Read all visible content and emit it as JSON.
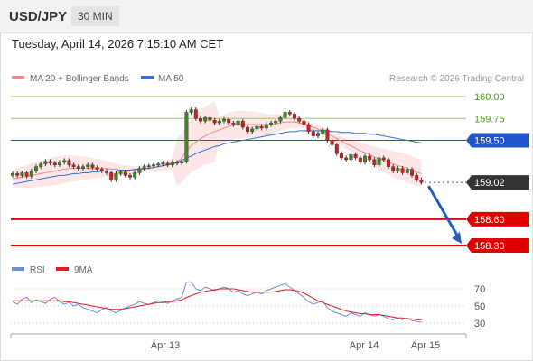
{
  "header": {
    "symbol": "USD/JPY",
    "timeframe": "30 MIN",
    "datetime": "Tuesday, April 14, 2026 7:15:10 AM CET"
  },
  "legend": {
    "ma20_label": "MA 20 + Bollinger Bands",
    "ma50_label": "MA 50",
    "credit": "Research © 2026 Trading Central",
    "rsi_label": "RSI",
    "rsi_ma_label": "9MA"
  },
  "colors": {
    "up": "#3a8a22",
    "down": "#d62020",
    "bollinger_fill": "#fde3e3",
    "ma20": "#f08a8a",
    "ma50": "#3a6fd8",
    "resistance": "#2255cc",
    "support": "#e00000",
    "target_line": "#99cc66",
    "target_text": "#4a9a1a",
    "last_price": "#333333",
    "forecast_arrow": "#1f5fbf",
    "rsi": "#6a8fd8",
    "rsi_ma": "#e02020"
  },
  "chart_data": [
    {
      "type": "candlestick",
      "title": "USD/JPY 30 MIN",
      "x_labels": [
        "Apr 13",
        "Apr 14",
        "Apr 15"
      ],
      "ylim": [
        158.2,
        160.1
      ],
      "price_axis_ticks": [
        160.0,
        159.75
      ],
      "levels": [
        {
          "value": 160.0,
          "label": "160.00",
          "kind": "target"
        },
        {
          "value": 159.75,
          "label": "159.75",
          "kind": "target"
        },
        {
          "value": 159.5,
          "label": "159.50",
          "kind": "resistance"
        },
        {
          "value": 159.02,
          "label": "159.02",
          "kind": "last-price"
        },
        {
          "value": 158.6,
          "label": "158.60",
          "kind": "support"
        },
        {
          "value": 158.3,
          "label": "158.30",
          "kind": "support"
        }
      ],
      "forecast": {
        "from": 159.02,
        "to": 158.3,
        "direction": "down"
      },
      "candles_close": [
        159.12,
        159.1,
        159.13,
        159.09,
        159.15,
        159.2,
        159.23,
        159.26,
        159.24,
        159.22,
        159.25,
        159.27,
        159.22,
        159.2,
        159.18,
        159.2,
        159.22,
        159.19,
        159.17,
        159.15,
        159.13,
        159.05,
        159.12,
        159.14,
        159.1,
        159.08,
        159.13,
        159.18,
        159.2,
        159.21,
        159.22,
        159.23,
        159.24,
        159.22,
        159.25,
        159.24,
        159.26,
        159.82,
        159.85,
        159.75,
        159.72,
        159.76,
        159.73,
        159.7,
        159.72,
        159.74,
        159.7,
        159.68,
        159.72,
        159.65,
        159.6,
        159.63,
        159.66,
        159.64,
        159.68,
        159.7,
        159.72,
        159.76,
        159.82,
        159.8,
        159.75,
        159.72,
        159.68,
        159.6,
        159.55,
        159.58,
        159.62,
        159.5,
        159.45,
        159.35,
        159.3,
        159.28,
        159.34,
        159.3,
        159.25,
        159.32,
        159.28,
        159.22,
        159.3,
        159.28,
        159.2,
        159.15,
        159.18,
        159.13,
        159.17,
        159.1,
        159.05,
        159.02
      ],
      "ma20_values": [
        159.06,
        159.07,
        159.08,
        159.09,
        159.1,
        159.11,
        159.12,
        159.13,
        159.14,
        159.15,
        159.16,
        159.17,
        159.18,
        159.18,
        159.18,
        159.18,
        159.18,
        159.18,
        159.18,
        159.18,
        159.18,
        159.17,
        159.17,
        159.16,
        159.16,
        159.16,
        159.16,
        159.17,
        159.17,
        159.18,
        159.19,
        159.2,
        159.21,
        159.22,
        159.23,
        159.25,
        159.3,
        159.38,
        159.44,
        159.48,
        159.52,
        159.55,
        159.58,
        159.6,
        159.62,
        159.64,
        159.66,
        159.67,
        159.68,
        159.68,
        159.68,
        159.68,
        159.68,
        159.68,
        159.68,
        159.68,
        159.69,
        159.7,
        159.71,
        159.71,
        159.71,
        159.7,
        159.69,
        159.67,
        159.65,
        159.63,
        159.61,
        159.58,
        159.55,
        159.52,
        159.49,
        159.46,
        159.44,
        159.41,
        159.38,
        159.36,
        159.34,
        159.31,
        159.29,
        159.27,
        159.25,
        159.23,
        159.21,
        159.2,
        159.18,
        159.16,
        159.14,
        159.12
      ],
      "ma50_values": [
        159.0,
        159.01,
        159.02,
        159.03,
        159.04,
        159.05,
        159.06,
        159.07,
        159.08,
        159.09,
        159.1,
        159.1,
        159.11,
        159.12,
        159.12,
        159.13,
        159.13,
        159.14,
        159.14,
        159.15,
        159.15,
        159.15,
        159.15,
        159.16,
        159.16,
        159.16,
        159.17,
        159.17,
        159.18,
        159.18,
        159.19,
        159.2,
        159.21,
        159.22,
        159.23,
        159.25,
        159.27,
        159.3,
        159.32,
        159.35,
        159.37,
        159.39,
        159.41,
        159.43,
        159.44,
        159.46,
        159.47,
        159.48,
        159.49,
        159.5,
        159.51,
        159.52,
        159.53,
        159.54,
        159.55,
        159.56,
        159.57,
        159.58,
        159.59,
        159.6,
        159.6,
        159.61,
        159.61,
        159.61,
        159.61,
        159.61,
        159.61,
        159.61,
        159.6,
        159.6,
        159.59,
        159.59,
        159.59,
        159.58,
        159.58,
        159.58,
        159.57,
        159.57,
        159.56,
        159.55,
        159.54,
        159.53,
        159.52,
        159.51,
        159.5,
        159.49,
        159.48,
        159.47
      ]
    },
    {
      "type": "line",
      "title": "RSI",
      "yticks": [
        70,
        50,
        30
      ],
      "ylim": [
        20,
        85
      ],
      "series": [
        {
          "name": "RSI",
          "values": [
            55,
            52,
            58,
            60,
            54,
            57,
            55,
            53,
            58,
            60,
            55,
            52,
            54,
            50,
            52,
            48,
            46,
            44,
            42,
            46,
            48,
            44,
            42,
            45,
            48,
            50,
            52,
            55,
            53,
            52,
            54,
            56,
            55,
            53,
            56,
            58,
            60,
            78,
            78,
            70,
            68,
            72,
            70,
            68,
            70,
            72,
            70,
            66,
            68,
            64,
            62,
            64,
            66,
            64,
            68,
            70,
            72,
            74,
            76,
            72,
            68,
            64,
            60,
            55,
            52,
            54,
            56,
            48,
            44,
            42,
            40,
            38,
            42,
            40,
            38,
            42,
            40,
            38,
            40,
            38,
            35,
            34,
            36,
            34,
            36,
            33,
            32,
            31
          ]
        },
        {
          "name": "9MA",
          "values": [
            56,
            56,
            56,
            56,
            56,
            56,
            56,
            56,
            56,
            56,
            56,
            55,
            55,
            54,
            53,
            52,
            51,
            50,
            49,
            48,
            47,
            46,
            46,
            46,
            47,
            48,
            49,
            50,
            51,
            52,
            53,
            54,
            54,
            55,
            55,
            56,
            57,
            60,
            62,
            64,
            66,
            67,
            68,
            69,
            70,
            70,
            70,
            70,
            69,
            68,
            67,
            66,
            66,
            66,
            66,
            66,
            67,
            68,
            69,
            69,
            68,
            67,
            65,
            62,
            59,
            56,
            54,
            52,
            50,
            48,
            46,
            44,
            43,
            42,
            41,
            41,
            40,
            40,
            40,
            39,
            38,
            37,
            36,
            36,
            35,
            35,
            34,
            34
          ]
        }
      ]
    }
  ]
}
